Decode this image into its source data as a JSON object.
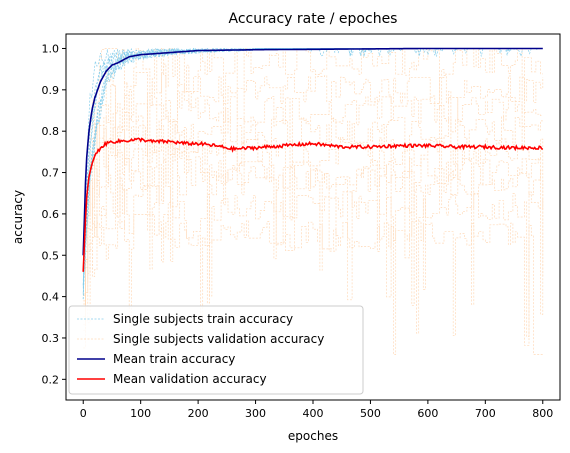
{
  "chart_data": {
    "type": "line",
    "title": "Accuracy rate / epoches",
    "xlabel": "epoches",
    "ylabel": "accuracy",
    "xlim": [
      -30,
      830
    ],
    "ylim": [
      0.15,
      1.035
    ],
    "xticks": [
      0,
      100,
      200,
      300,
      400,
      500,
      600,
      700,
      800
    ],
    "yticks": [
      0.2,
      0.3,
      0.4,
      0.5,
      0.6,
      0.7,
      0.8,
      0.9,
      1.0
    ],
    "xtick_labels": [
      "0",
      "100",
      "200",
      "300",
      "400",
      "500",
      "600",
      "700",
      "800"
    ],
    "ytick_labels": [
      "0.2",
      "0.3",
      "0.4",
      "0.5",
      "0.6",
      "0.7",
      "0.8",
      "0.9",
      "1.0"
    ],
    "grid": false,
    "legend_position": "lower-left",
    "series": [
      {
        "name": "Single subjects train accuracy",
        "color": "#87ceeb",
        "style": "dashed-thin",
        "subjects": 9,
        "approx_range": [
          0.9,
          1.0
        ]
      },
      {
        "name": "Single subjects validation accuracy",
        "color": "#ffdab9",
        "style": "dashed-thin",
        "subjects": 9,
        "approx_range": [
          0.25,
          1.0
        ]
      },
      {
        "name": "Mean train accuracy",
        "color": "#00008b",
        "style": "solid",
        "x": [
          0,
          5,
          10,
          15,
          20,
          25,
          30,
          40,
          50,
          60,
          80,
          100,
          150,
          200,
          300,
          400,
          500,
          600,
          700,
          800
        ],
        "y": [
          0.5,
          0.72,
          0.8,
          0.85,
          0.88,
          0.9,
          0.92,
          0.945,
          0.96,
          0.965,
          0.98,
          0.985,
          0.99,
          0.995,
          0.997,
          0.998,
          0.999,
          1.0,
          1.0,
          1.0
        ]
      },
      {
        "name": "Mean validation accuracy",
        "color": "#ff0000",
        "style": "solid",
        "x": [
          0,
          3,
          6,
          10,
          15,
          20,
          25,
          30,
          40,
          50,
          60,
          80,
          100,
          120,
          150,
          180,
          200,
          230,
          260,
          300,
          350,
          400,
          450,
          500,
          550,
          600,
          650,
          700,
          750,
          800
        ],
        "y": [
          0.46,
          0.56,
          0.64,
          0.69,
          0.72,
          0.74,
          0.75,
          0.76,
          0.77,
          0.775,
          0.775,
          0.778,
          0.78,
          0.775,
          0.775,
          0.77,
          0.77,
          0.765,
          0.757,
          0.76,
          0.765,
          0.77,
          0.762,
          0.762,
          0.765,
          0.765,
          0.762,
          0.762,
          0.76,
          0.76
        ]
      }
    ]
  }
}
